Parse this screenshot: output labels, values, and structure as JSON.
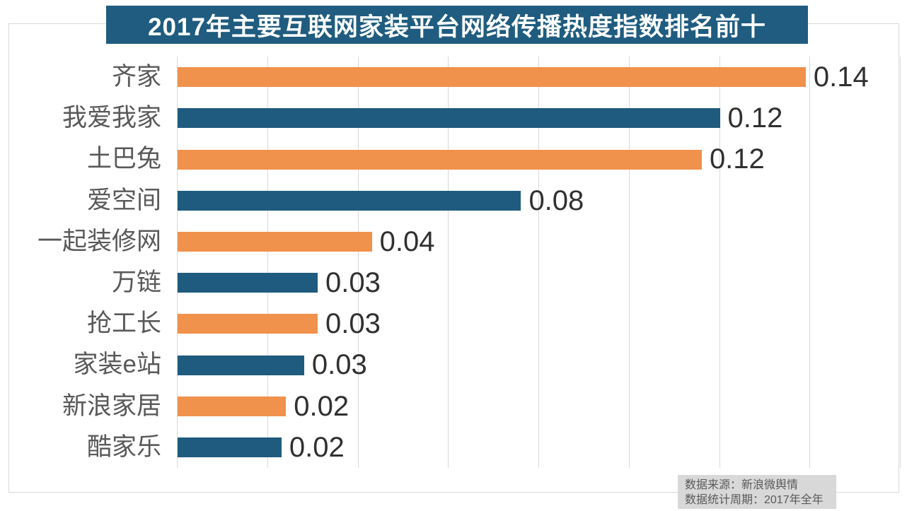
{
  "title": "2017年主要互联网家装平台网络传播热度指数排名前十",
  "source_box": {
    "line1": "数据来源：新浪微舆情",
    "line2": "数据统计周期：2017年全年"
  },
  "colors": {
    "title_banner_bg": "#1f5c7f",
    "title_text": "#ffffff",
    "bar_orange": "#f0914c",
    "bar_blue": "#1f5b7e",
    "gridline": "#d9d9d9",
    "frame_border": "#d9d9d9",
    "category_text": "#595959",
    "value_text": "#303030",
    "source_bg": "#d8d8d8",
    "source_text": "#595959"
  },
  "chart_data": {
    "type": "bar",
    "orientation": "horizontal",
    "title": "2017年主要互联网家装平台网络传播热度指数排名前十",
    "categories": [
      "齐家",
      "我爱我家",
      "土巴兔",
      "爱空间",
      "一起装修网",
      "万链",
      "抢工长",
      "家装e站",
      "新浪家居",
      "酷家乐"
    ],
    "values": [
      0.14,
      0.12,
      0.12,
      0.08,
      0.04,
      0.03,
      0.03,
      0.03,
      0.02,
      0.02
    ],
    "value_labels": [
      "0.14",
      "0.12",
      "0.12",
      "0.08",
      "0.04",
      "0.03",
      "0.03",
      "0.03",
      "0.02",
      "0.02"
    ],
    "bar_values_precise": [
      0.139,
      0.12,
      0.116,
      0.076,
      0.043,
      0.031,
      0.031,
      0.028,
      0.024,
      0.023
    ],
    "xlabel": "",
    "ylabel": "",
    "xlim": [
      0,
      0.16
    ],
    "grid_interval": 0.02,
    "grid": true,
    "legend": false,
    "bar_color_pattern": [
      "#f0914c",
      "#1f5b7e"
    ],
    "annotations": [
      "数据来源：新浪微舆情",
      "数据统计周期：2017年全年"
    ]
  }
}
